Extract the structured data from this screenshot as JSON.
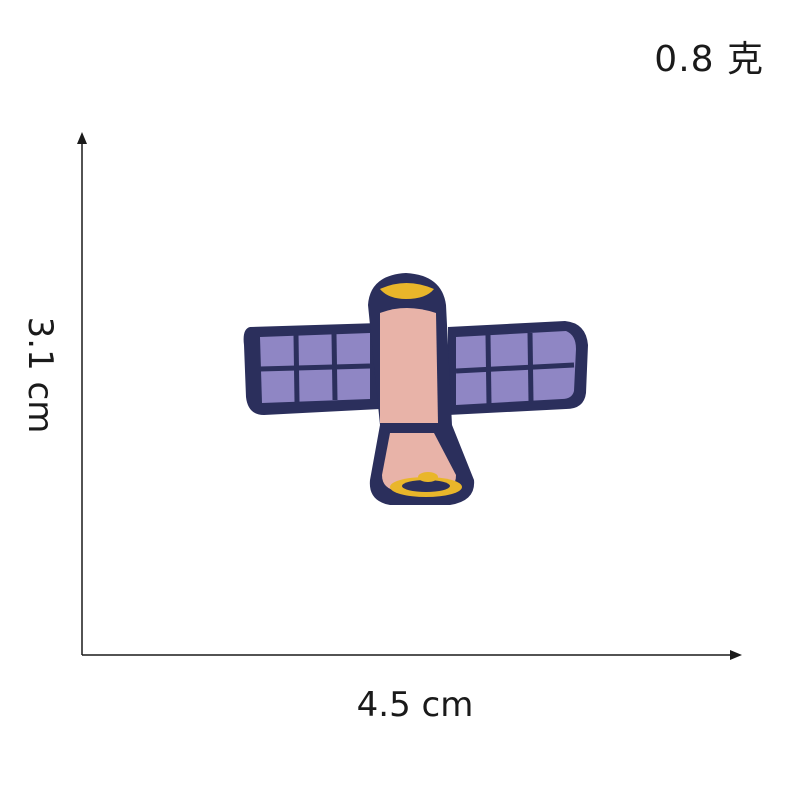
{
  "weight_label": "0.8 克",
  "dimensions": {
    "height_label": "3.1 cm",
    "width_label": "4.5 cm"
  },
  "colors": {
    "outline": "#2b2f5c",
    "panel": "#8f86c4",
    "body": "#e8b3a8",
    "accent": "#e9b62a",
    "axis": "#1a1a1a"
  }
}
